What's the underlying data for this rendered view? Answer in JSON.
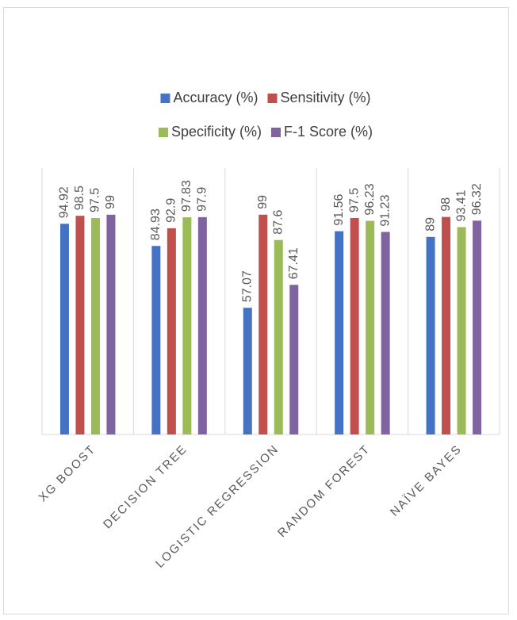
{
  "chart_data": {
    "type": "bar",
    "categories": [
      "XG BOOST",
      "DECISION TREE",
      "LOGISTIC REGRESSION",
      "RANDOM FOREST",
      "NAÏVE BAYES"
    ],
    "series": [
      {
        "name": "Accuracy (%)",
        "color": "#4472c4",
        "values": [
          94.92,
          84.93,
          57.07,
          91.56,
          89
        ]
      },
      {
        "name": "Sensitivity (%)",
        "color": "#c0504d",
        "values": [
          98.5,
          92.9,
          99,
          97.5,
          98
        ]
      },
      {
        "name": "Specificity (%)",
        "color": "#9bbb59",
        "values": [
          97.5,
          97.83,
          87.6,
          96.23,
          93.41
        ]
      },
      {
        "name": "F-1 Score (%)",
        "color": "#8064a2",
        "values": [
          99,
          97.9,
          67.41,
          91.23,
          96.32
        ]
      }
    ],
    "ylim": [
      0,
      120
    ],
    "legend": "top"
  }
}
